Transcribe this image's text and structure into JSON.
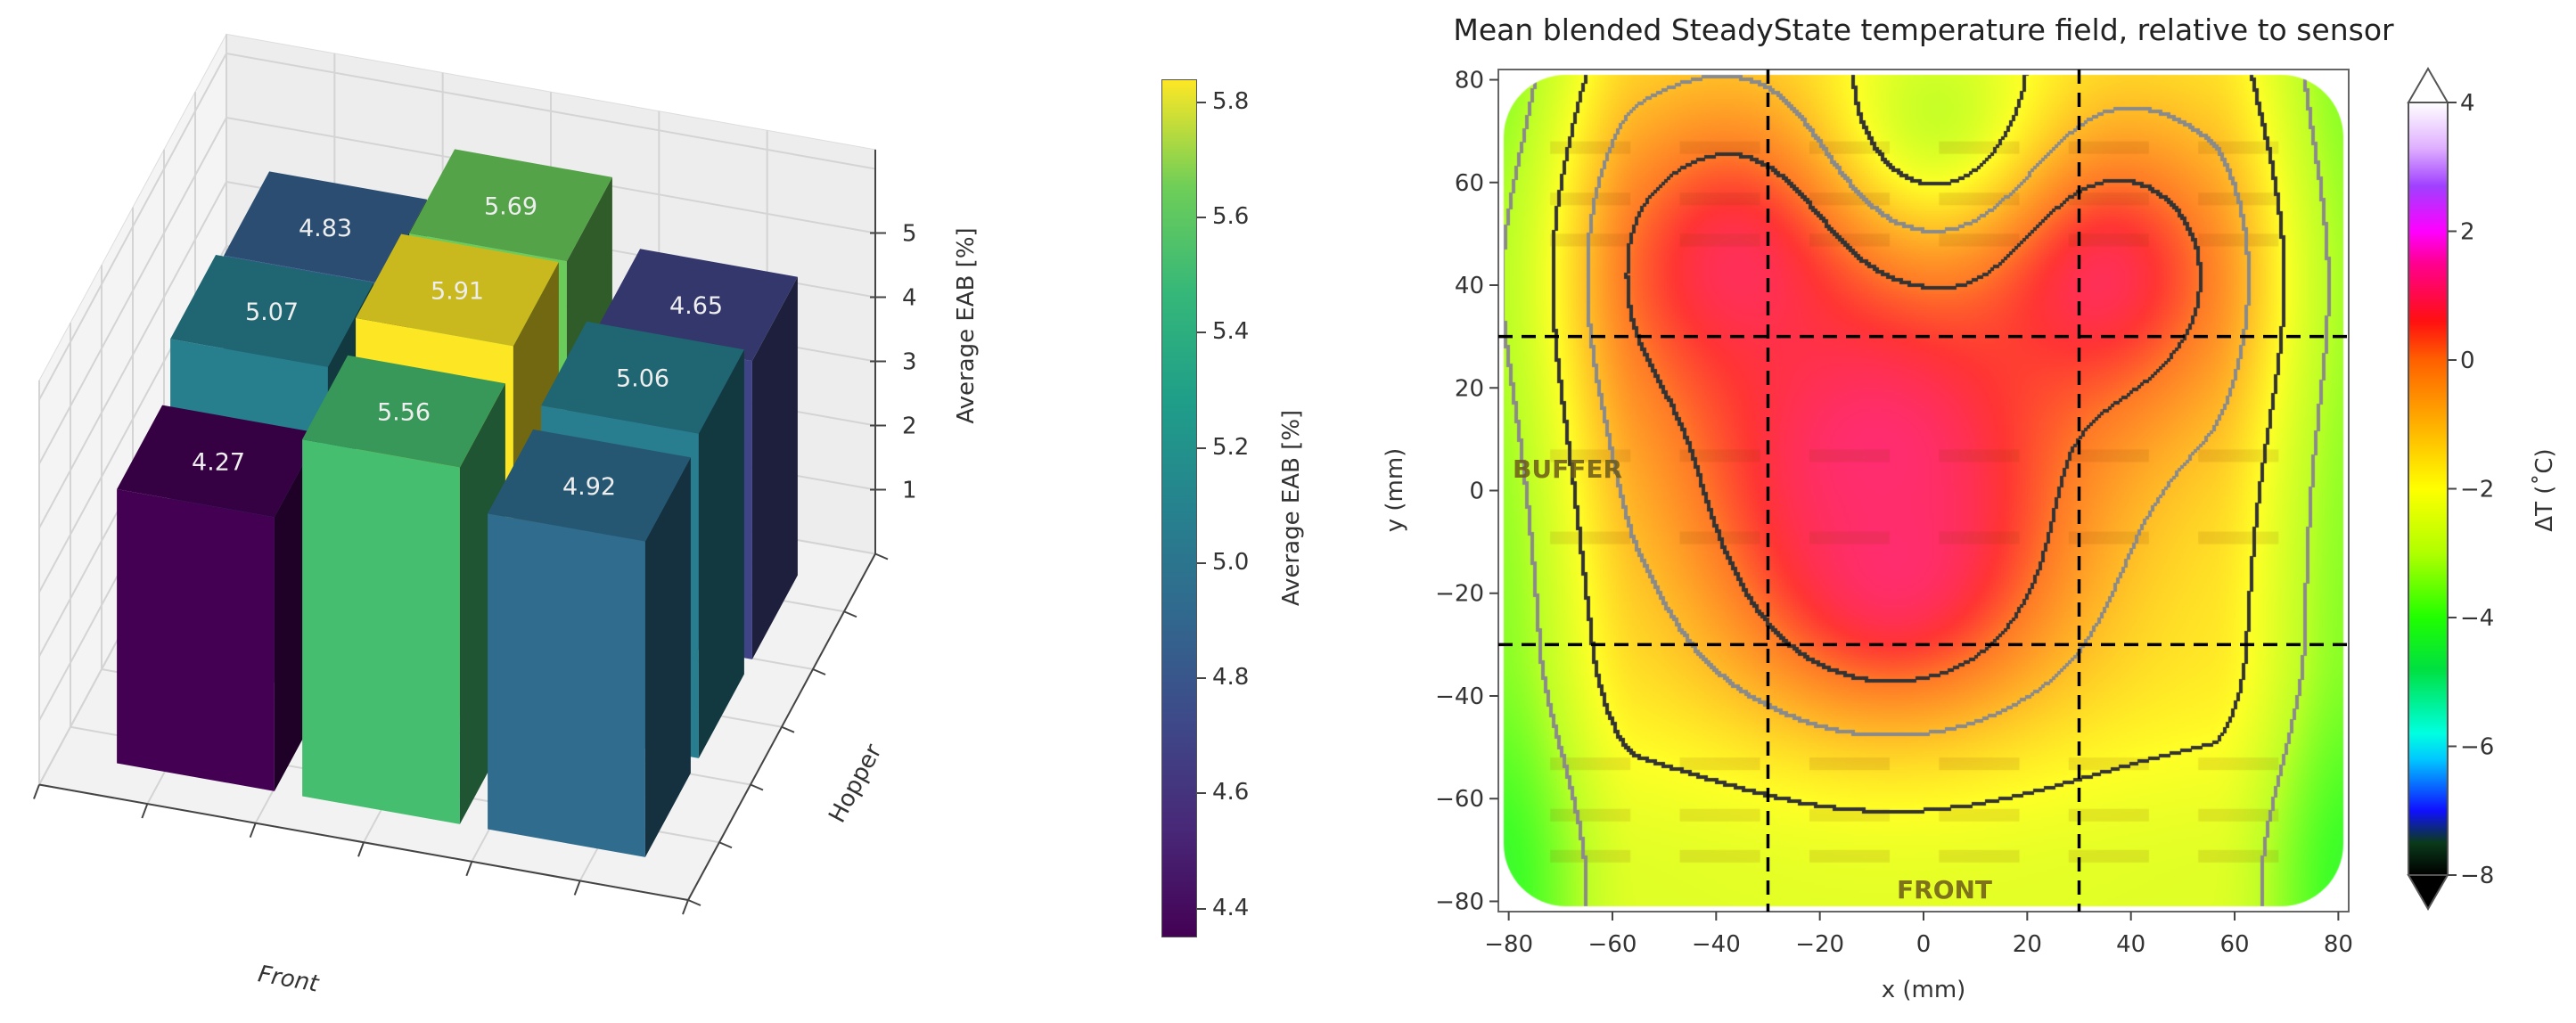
{
  "chart_data": [
    {
      "type": "bar3d",
      "xlabel": "Front",
      "ylabel": "Hopper",
      "zlabel": "Average EAB [%]",
      "zticks": [
        "1",
        "2",
        "3",
        "4",
        "5"
      ],
      "values_front_to_back": [
        [
          4.27,
          5.56,
          4.92
        ],
        [
          5.07,
          5.91,
          5.06
        ],
        [
          4.83,
          5.69,
          4.65
        ]
      ],
      "value_labels": [
        [
          "4.27",
          "5.56",
          "4.92"
        ],
        [
          "5.07",
          "5.91",
          "5.06"
        ],
        [
          "4.83",
          "5.69",
          "4.65"
        ]
      ],
      "colormap": "viridis",
      "colorbar": {
        "label": "Average EAB [%]",
        "ticks": [
          "4.4",
          "4.6",
          "4.8",
          "5.0",
          "5.2",
          "5.4",
          "5.6",
          "5.8"
        ],
        "tick_values": [
          4.4,
          4.6,
          4.8,
          5.0,
          5.2,
          5.4,
          5.6,
          5.8
        ],
        "range": [
          4.35,
          5.84
        ]
      }
    },
    {
      "type": "heatmap",
      "title": "Mean blended SteadyState temperature field, relative to sensor",
      "xlabel": "x (mm)",
      "ylabel": "y (mm)",
      "xlim": [
        -82,
        82
      ],
      "ylim": [
        -82,
        82
      ],
      "xticks": [
        "−80",
        "−60",
        "−40",
        "−20",
        "0",
        "20",
        "40",
        "60",
        "80"
      ],
      "xtick_values": [
        -80,
        -60,
        -40,
        -20,
        0,
        20,
        40,
        60,
        80
      ],
      "yticks": [
        "80",
        "60",
        "40",
        "20",
        "0",
        "−20",
        "−40",
        "−60",
        "−80"
      ],
      "ytick_values": [
        80,
        60,
        40,
        20,
        0,
        -20,
        -40,
        -60,
        -80
      ],
      "dashed_lines": {
        "x": [
          -30,
          30
        ],
        "y": [
          -30,
          30
        ]
      },
      "annotations": {
        "buffer": "BUFFER",
        "front": "FRONT"
      },
      "contour_levels": [
        -3,
        -2,
        -1,
        0
      ],
      "colorbar": {
        "label": "ΔT (˚C)",
        "ticks": [
          "4",
          "2",
          "0",
          "−2",
          "−4",
          "−6",
          "−8"
        ],
        "tick_values": [
          4,
          2,
          0,
          -2,
          -4,
          -6,
          -8
        ],
        "range": [
          -8,
          4
        ],
        "extend": "both"
      }
    }
  ]
}
